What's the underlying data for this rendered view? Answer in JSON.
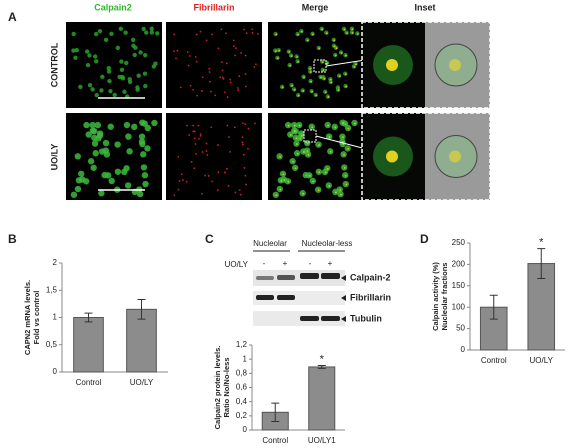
{
  "panel_labels": [
    "A",
    "B",
    "C",
    "D"
  ],
  "panel_a": {
    "columns": [
      "Calpain2",
      "Fibrillarin",
      "Merge",
      "Inset"
    ],
    "rows": [
      "CONTROL",
      "UO/LY"
    ]
  },
  "panel_c_blot": {
    "groups": [
      "Nucleolar",
      "Nucleolar-less"
    ],
    "treatment": "UO/LY",
    "lanes": [
      "-",
      "+",
      "-",
      "+"
    ],
    "bands": [
      "Calpain-2",
      "Fibrillarin",
      "Tubulin"
    ]
  },
  "chart_data": [
    {
      "type": "bar",
      "categories": [
        "Control",
        "UO/LY"
      ],
      "values": [
        1.0,
        1.15
      ],
      "errors": [
        0.08,
        0.18
      ],
      "color": "#8c8c8c",
      "y_label": [
        "CAPN2 mRNA levels.",
        "Fold vs control"
      ],
      "ylim": [
        0,
        2
      ],
      "yticks": [
        0,
        {
          "value": 0.5,
          "label": "0,5"
        },
        1,
        {
          "value": 1.5,
          "label": "1,5"
        },
        2
      ]
    },
    {
      "type": "bar",
      "categories": [
        "Control",
        "UO/LY1"
      ],
      "values": [
        0.25,
        0.89
      ],
      "errors": [
        0.13,
        0.02
      ],
      "color": "#8c8c8c",
      "y_label": [
        "Calpain2 protein levels.",
        "Ratio No/No-less"
      ],
      "ylim": [
        0,
        1.2
      ],
      "yticks": [
        0,
        {
          "value": 0.2,
          "label": "0,2"
        },
        {
          "value": 0.4,
          "label": "0,4"
        },
        {
          "value": 0.6,
          "label": "0,6"
        },
        {
          "value": 0.8,
          "label": "0,8"
        },
        1,
        {
          "value": 1.2,
          "label": "1,2"
        }
      ],
      "annotations": [
        {
          "text": "*",
          "x": "UO/LY1"
        }
      ]
    },
    {
      "type": "bar",
      "categories": [
        "Control",
        "UO/LY"
      ],
      "values": [
        100,
        202
      ],
      "errors": [
        28,
        35
      ],
      "color": "#8c8c8c",
      "y_label": [
        "Calpain activity (%)",
        "Nucleolar fractions"
      ],
      "ylim": [
        0,
        250
      ],
      "yticks": [
        0,
        50,
        100,
        150,
        200,
        250
      ],
      "annotations": [
        {
          "text": "*",
          "x": "UO/LY"
        }
      ]
    }
  ]
}
